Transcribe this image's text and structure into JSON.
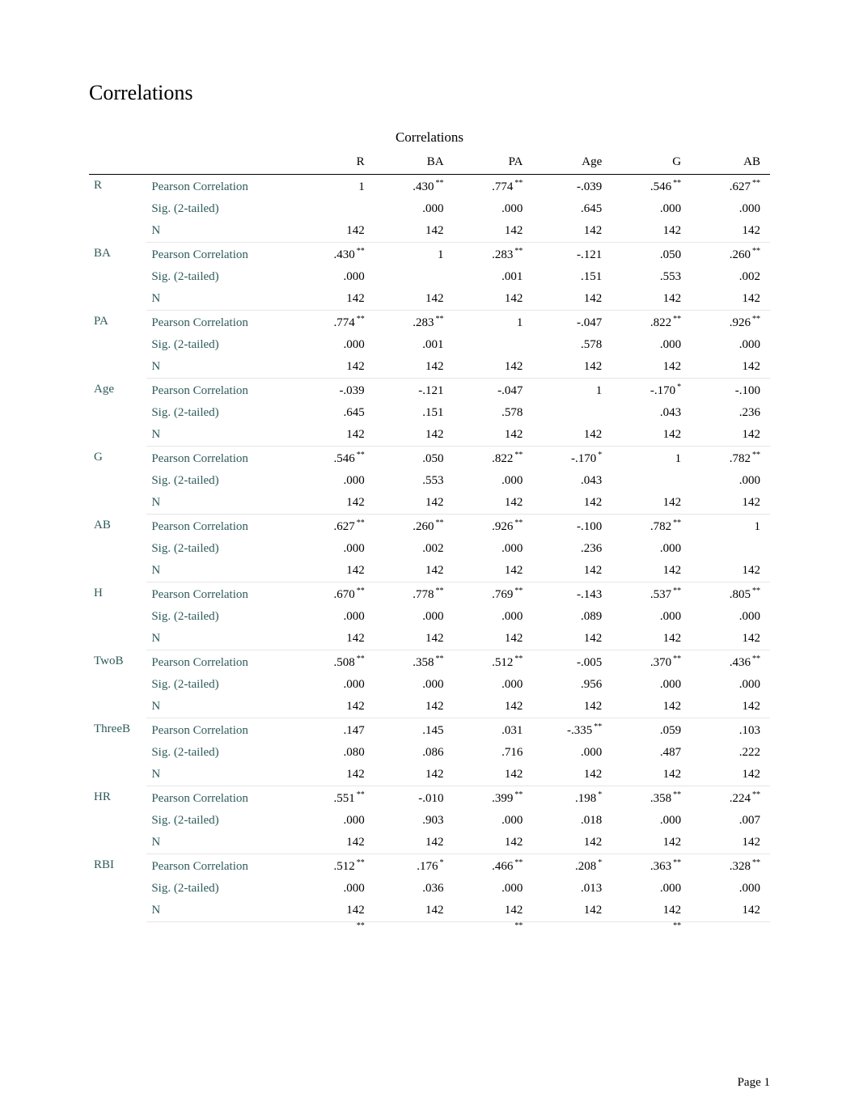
{
  "section_title": "Correlations",
  "table_title": "Correlations",
  "page_label": "Page 1",
  "columns": [
    "R",
    "BA",
    "PA",
    "Age",
    "G",
    "AB"
  ],
  "stat_labels": {
    "pearson": "Pearson Correlation",
    "sig": "Sig. (2-tailed)",
    "n": "N"
  },
  "colors": {
    "label_text": "#2e5a5a",
    "body_text": "#000000",
    "rule": "#000000",
    "light_rule": "#e6e6e6",
    "background": "#ffffff"
  },
  "typography": {
    "section_title_pt": 20,
    "table_title_pt": 13,
    "body_pt": 11,
    "sup_pt": 7,
    "font_family": "Times New Roman"
  },
  "trailing_sup_cols": [
    "R",
    "PA",
    "G"
  ],
  "trailing_sup_mark": "**",
  "variables": [
    {
      "name": "R",
      "pearson": [
        {
          "v": "1"
        },
        {
          "v": ".430",
          "s": "**"
        },
        {
          "v": ".774",
          "s": "**"
        },
        {
          "v": "-.039"
        },
        {
          "v": ".546",
          "s": "**"
        },
        {
          "v": ".627",
          "s": "**"
        }
      ],
      "sig": [
        "",
        ".000",
        ".000",
        ".645",
        ".000",
        ".000"
      ],
      "n": [
        "142",
        "142",
        "142",
        "142",
        "142",
        "142"
      ]
    },
    {
      "name": "BA",
      "pearson": [
        {
          "v": ".430",
          "s": "**"
        },
        {
          "v": "1"
        },
        {
          "v": ".283",
          "s": "**"
        },
        {
          "v": "-.121"
        },
        {
          "v": ".050"
        },
        {
          "v": ".260",
          "s": "**"
        }
      ],
      "sig": [
        ".000",
        "",
        ".001",
        ".151",
        ".553",
        ".002"
      ],
      "n": [
        "142",
        "142",
        "142",
        "142",
        "142",
        "142"
      ]
    },
    {
      "name": "PA",
      "pearson": [
        {
          "v": ".774",
          "s": "**"
        },
        {
          "v": ".283",
          "s": "**"
        },
        {
          "v": "1"
        },
        {
          "v": "-.047"
        },
        {
          "v": ".822",
          "s": "**"
        },
        {
          "v": ".926",
          "s": "**"
        }
      ],
      "sig": [
        ".000",
        ".001",
        "",
        ".578",
        ".000",
        ".000"
      ],
      "n": [
        "142",
        "142",
        "142",
        "142",
        "142",
        "142"
      ]
    },
    {
      "name": "Age",
      "pearson": [
        {
          "v": "-.039"
        },
        {
          "v": "-.121"
        },
        {
          "v": "-.047"
        },
        {
          "v": "1"
        },
        {
          "v": "-.170",
          "s": "*"
        },
        {
          "v": "-.100"
        }
      ],
      "sig": [
        ".645",
        ".151",
        ".578",
        "",
        ".043",
        ".236"
      ],
      "n": [
        "142",
        "142",
        "142",
        "142",
        "142",
        "142"
      ]
    },
    {
      "name": "G",
      "pearson": [
        {
          "v": ".546",
          "s": "**"
        },
        {
          "v": ".050"
        },
        {
          "v": ".822",
          "s": "**"
        },
        {
          "v": "-.170",
          "s": "*"
        },
        {
          "v": "1"
        },
        {
          "v": ".782",
          "s": "**"
        }
      ],
      "sig": [
        ".000",
        ".553",
        ".000",
        ".043",
        "",
        ".000"
      ],
      "n": [
        "142",
        "142",
        "142",
        "142",
        "142",
        "142"
      ]
    },
    {
      "name": "AB",
      "pearson": [
        {
          "v": ".627",
          "s": "**"
        },
        {
          "v": ".260",
          "s": "**"
        },
        {
          "v": ".926",
          "s": "**"
        },
        {
          "v": "-.100"
        },
        {
          "v": ".782",
          "s": "**"
        },
        {
          "v": "1"
        }
      ],
      "sig": [
        ".000",
        ".002",
        ".000",
        ".236",
        ".000",
        ""
      ],
      "n": [
        "142",
        "142",
        "142",
        "142",
        "142",
        "142"
      ]
    },
    {
      "name": "H",
      "pearson": [
        {
          "v": ".670",
          "s": "**"
        },
        {
          "v": ".778",
          "s": "**"
        },
        {
          "v": ".769",
          "s": "**"
        },
        {
          "v": "-.143"
        },
        {
          "v": ".537",
          "s": "**"
        },
        {
          "v": ".805",
          "s": "**"
        }
      ],
      "sig": [
        ".000",
        ".000",
        ".000",
        ".089",
        ".000",
        ".000"
      ],
      "n": [
        "142",
        "142",
        "142",
        "142",
        "142",
        "142"
      ]
    },
    {
      "name": "TwoB",
      "pearson": [
        {
          "v": ".508",
          "s": "**"
        },
        {
          "v": ".358",
          "s": "**"
        },
        {
          "v": ".512",
          "s": "**"
        },
        {
          "v": "-.005"
        },
        {
          "v": ".370",
          "s": "**"
        },
        {
          "v": ".436",
          "s": "**"
        }
      ],
      "sig": [
        ".000",
        ".000",
        ".000",
        ".956",
        ".000",
        ".000"
      ],
      "n": [
        "142",
        "142",
        "142",
        "142",
        "142",
        "142"
      ]
    },
    {
      "name": "ThreeB",
      "pearson": [
        {
          "v": ".147"
        },
        {
          "v": ".145"
        },
        {
          "v": ".031"
        },
        {
          "v": "-.335",
          "s": "**"
        },
        {
          "v": ".059"
        },
        {
          "v": ".103"
        }
      ],
      "sig": [
        ".080",
        ".086",
        ".716",
        ".000",
        ".487",
        ".222"
      ],
      "n": [
        "142",
        "142",
        "142",
        "142",
        "142",
        "142"
      ]
    },
    {
      "name": "HR",
      "pearson": [
        {
          "v": ".551",
          "s": "**"
        },
        {
          "v": "-.010"
        },
        {
          "v": ".399",
          "s": "**"
        },
        {
          "v": ".198",
          "s": "*"
        },
        {
          "v": ".358",
          "s": "**"
        },
        {
          "v": ".224",
          "s": "**"
        }
      ],
      "sig": [
        ".000",
        ".903",
        ".000",
        ".018",
        ".000",
        ".007"
      ],
      "n": [
        "142",
        "142",
        "142",
        "142",
        "142",
        "142"
      ]
    },
    {
      "name": "RBI",
      "pearson": [
        {
          "v": ".512",
          "s": "**"
        },
        {
          "v": ".176",
          "s": "*"
        },
        {
          "v": ".466",
          "s": "**"
        },
        {
          "v": ".208",
          "s": "*"
        },
        {
          "v": ".363",
          "s": "**"
        },
        {
          "v": ".328",
          "s": "**"
        }
      ],
      "sig": [
        ".000",
        ".036",
        ".000",
        ".013",
        ".000",
        ".000"
      ],
      "n": [
        "142",
        "142",
        "142",
        "142",
        "142",
        "142"
      ]
    }
  ]
}
